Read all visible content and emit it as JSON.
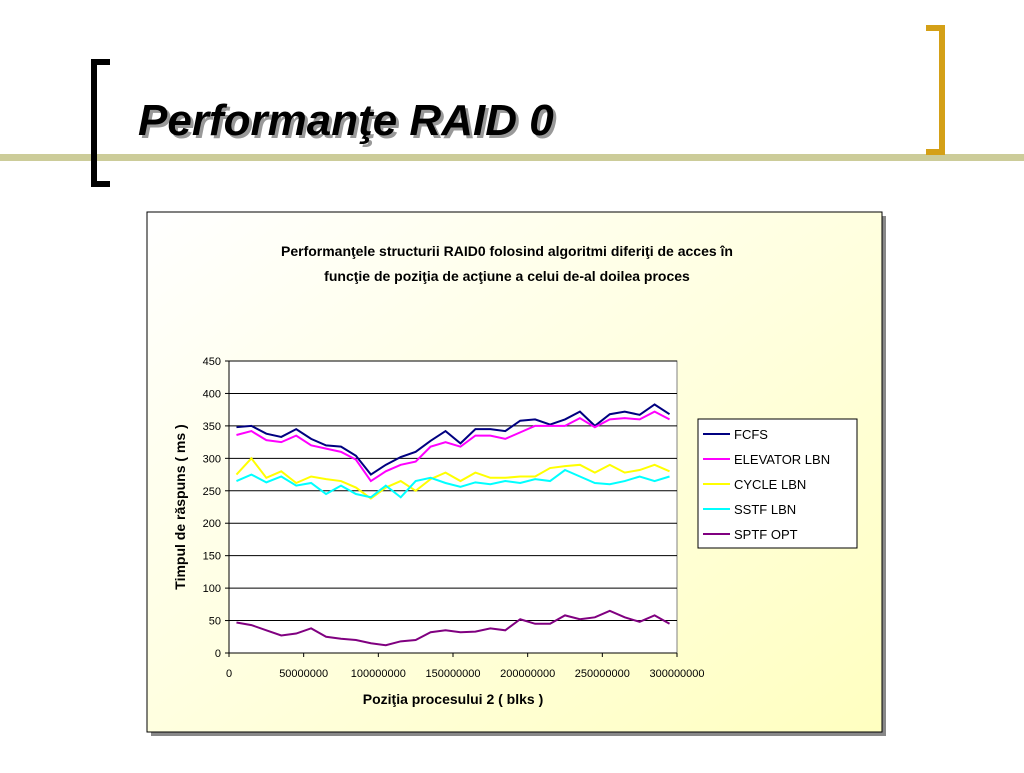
{
  "slide": {
    "title": "Performanţe RAID 0"
  },
  "chart_data": {
    "type": "line",
    "title": [
      "Performanţele structurii RAID0 folosind algoritmi diferiţi de acces în",
      "funcţie de poziţia de acţiune a celui de-al doilea proces"
    ],
    "x_label": "Poziţia procesului 2 ( blks )",
    "y_label": "Timpul de răspuns ( ms )",
    "x": [
      5000000,
      15000000,
      25000000,
      35000000,
      45000000,
      55000000,
      65000000,
      75000000,
      85000000,
      95000000,
      105000000,
      115000000,
      125000000,
      135000000,
      145000000,
      155000000,
      165000000,
      175000000,
      185000000,
      195000000,
      205000000,
      215000000,
      225000000,
      235000000,
      245000000,
      255000000,
      265000000,
      275000000,
      285000000,
      295000000
    ],
    "series": [
      {
        "name": "FCFS",
        "color": "#000080",
        "values": [
          348,
          350,
          338,
          333,
          345,
          330,
          320,
          318,
          304,
          275,
          290,
          302,
          310,
          327,
          342,
          323,
          345,
          345,
          342,
          358,
          360,
          352,
          360,
          372,
          350,
          368,
          372,
          367,
          383,
          368
        ]
      },
      {
        "name": "ELEVATOR LBN",
        "color": "#ff00ff",
        "values": [
          336,
          342,
          328,
          325,
          335,
          320,
          315,
          310,
          298,
          265,
          280,
          290,
          295,
          318,
          325,
          318,
          335,
          335,
          330,
          340,
          350,
          350,
          350,
          362,
          348,
          360,
          362,
          360,
          372,
          360
        ]
      },
      {
        "name": "CYCLE LBN",
        "color": "#ffff00",
        "values": [
          275,
          300,
          270,
          280,
          262,
          272,
          268,
          265,
          255,
          238,
          255,
          265,
          250,
          268,
          278,
          265,
          278,
          270,
          270,
          272,
          272,
          285,
          288,
          290,
          278,
          290,
          278,
          282,
          290,
          280
        ]
      },
      {
        "name": "SSTF LBN",
        "color": "#00ffff",
        "values": [
          265,
          275,
          263,
          272,
          258,
          262,
          245,
          258,
          245,
          240,
          258,
          240,
          265,
          270,
          262,
          256,
          263,
          260,
          265,
          262,
          268,
          265,
          282,
          272,
          262,
          260,
          265,
          272,
          265,
          272
        ]
      },
      {
        "name": "SPTF OPT",
        "color": "#800080",
        "values": [
          47,
          43,
          35,
          27,
          30,
          38,
          25,
          22,
          20,
          15,
          12,
          18,
          20,
          32,
          35,
          32,
          33,
          38,
          35,
          52,
          45,
          45,
          58,
          52,
          55,
          65,
          55,
          48,
          58,
          45
        ]
      }
    ],
    "xlim": [
      0,
      300000000
    ],
    "xticks": [
      0,
      50000000,
      100000000,
      150000000,
      200000000,
      250000000,
      300000000
    ],
    "ylim": [
      0,
      450
    ],
    "yticks": [
      0,
      50,
      100,
      150,
      200,
      250,
      300,
      350,
      400,
      450
    ],
    "grid": true,
    "legend": "right"
  }
}
